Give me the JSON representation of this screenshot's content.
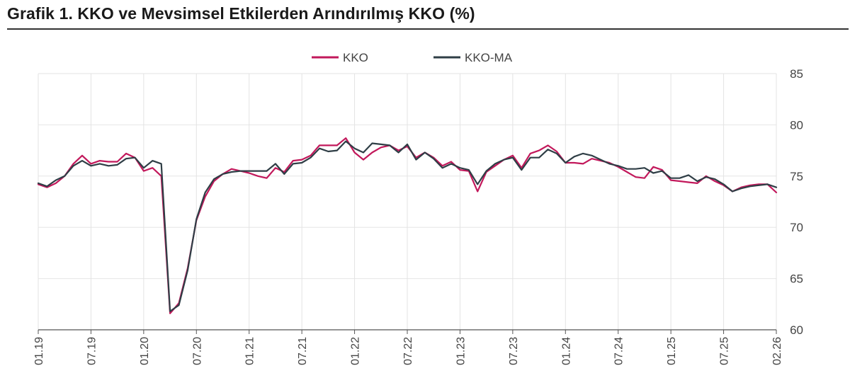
{
  "title": "Grafik 1. KKO ve Mevsimsel Etkilerden Arındırılmış KKO (%)",
  "chart_data": {
    "type": "line",
    "title": "Grafik 1. KKO ve Mevsimsel Etkilerden Arındırılmış KKO (%)",
    "xlabel": "",
    "ylabel": "",
    "ylim": [
      60,
      85
    ],
    "yticks": [
      60,
      65,
      70,
      75,
      80,
      85
    ],
    "y_axis_side": "right",
    "grid": "vertical",
    "legend_position": "top-center",
    "x_tick_labels": [
      "01.19",
      "07.19",
      "01.20",
      "07.20",
      "01.21",
      "07.21",
      "01.22",
      "07.22",
      "01.23",
      "07.23",
      "01.24",
      "07.24",
      "01.25",
      "07.25",
      "02.26"
    ],
    "x_tick_index": [
      0,
      6,
      12,
      18,
      24,
      30,
      36,
      42,
      48,
      54,
      60,
      66,
      72,
      78,
      84
    ],
    "series": [
      {
        "name": "KKO",
        "color": "#c2185b",
        "values": [
          74.2,
          73.9,
          74.3,
          75.0,
          76.2,
          77.0,
          76.2,
          76.5,
          76.4,
          76.4,
          77.2,
          76.8,
          75.5,
          75.8,
          75.0,
          61.6,
          62.6,
          66.0,
          70.7,
          73.0,
          74.5,
          75.2,
          75.7,
          75.5,
          75.3,
          75.0,
          74.8,
          75.8,
          75.4,
          76.5,
          76.6,
          77.0,
          78.0,
          78.0,
          78.0,
          78.7,
          77.3,
          76.6,
          77.3,
          77.8,
          78.0,
          77.5,
          77.9,
          76.8,
          77.3,
          76.8,
          76.0,
          76.4,
          75.6,
          75.5,
          73.5,
          75.4,
          76.0,
          76.6,
          77.0,
          75.8,
          77.2,
          77.5,
          78.0,
          77.4,
          76.3,
          76.3,
          76.2,
          76.7,
          76.5,
          76.3,
          75.9,
          75.4,
          74.9,
          74.8,
          75.9,
          75.6,
          74.6,
          74.5,
          74.4,
          74.3,
          75.0,
          74.5,
          74.1,
          73.5,
          73.9,
          74.1,
          74.2,
          74.2,
          73.4
        ]
      },
      {
        "name": "KKO-MA",
        "color": "#2f3e46",
        "values": [
          74.3,
          74.0,
          74.6,
          75.0,
          76.0,
          76.5,
          76.0,
          76.2,
          76.0,
          76.1,
          76.7,
          76.8,
          75.8,
          76.5,
          76.2,
          61.8,
          62.4,
          65.8,
          70.8,
          73.4,
          74.7,
          75.2,
          75.4,
          75.5,
          75.5,
          75.5,
          75.5,
          76.2,
          75.2,
          76.2,
          76.3,
          76.8,
          77.7,
          77.4,
          77.5,
          78.4,
          77.7,
          77.3,
          78.2,
          78.1,
          78.0,
          77.3,
          78.1,
          76.6,
          77.3,
          76.7,
          75.8,
          76.2,
          75.8,
          75.6,
          74.2,
          75.5,
          76.2,
          76.6,
          76.8,
          75.6,
          76.8,
          76.8,
          77.6,
          77.2,
          76.3,
          76.9,
          77.2,
          77.0,
          76.6,
          76.2,
          76.0,
          75.7,
          75.7,
          75.8,
          75.3,
          75.5,
          74.8,
          74.8,
          75.1,
          74.5,
          74.9,
          74.7,
          74.2,
          73.5,
          73.8,
          74.0,
          74.1,
          74.2,
          73.9
        ]
      }
    ]
  }
}
